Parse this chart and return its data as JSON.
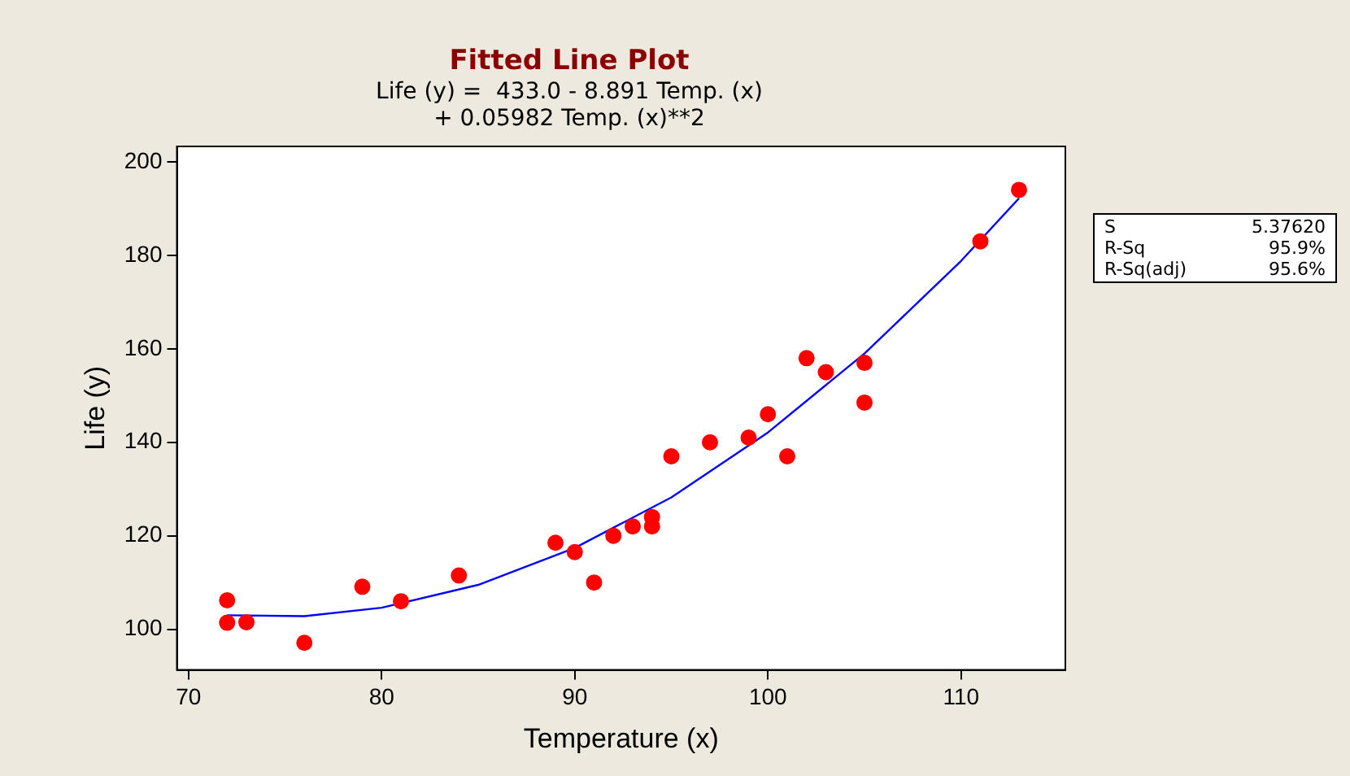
{
  "chart_data": {
    "type": "scatter",
    "title": "Fitted Line Plot",
    "subtitle": "Life (y) =  433.0 - 8.891 Temp. (x)\n+ 0.05982 Temp. (x)**2",
    "xlabel": "Temperature (x)",
    "ylabel": "Life (y)",
    "xlim": [
      69.4,
      115.4
    ],
    "ylim": [
      91.3,
      203.3
    ],
    "xticks": [
      70,
      80,
      90,
      100,
      110
    ],
    "yticks": [
      100,
      120,
      140,
      160,
      180,
      200
    ],
    "grid": false,
    "legend": false,
    "marker": "circle",
    "series": [
      {
        "color": "#ff0000",
        "x": [
          72,
          72,
          73,
          76,
          79,
          81,
          84,
          89,
          90,
          91,
          92,
          93,
          94,
          94,
          95,
          97,
          99,
          100,
          101,
          102,
          103,
          105,
          105,
          111,
          113
        ],
        "values": [
          106.2,
          101.4,
          101.5,
          97.1,
          109.1,
          106,
          111.5,
          118.5,
          116.5,
          110,
          120,
          122,
          124,
          122,
          137,
          140,
          141,
          146,
          137,
          158,
          155,
          157,
          148.5,
          183,
          194
        ]
      },
      {
        "type": "line",
        "color": "#0000ff",
        "marker": "none",
        "line_style": "solid",
        "x": [
          72,
          76,
          80,
          85,
          90,
          95,
          100,
          105,
          110,
          113
        ],
        "values": [
          103,
          102.8,
          104.6,
          109.5,
          117.4,
          128.2,
          142.1,
          159,
          178.8,
          192.2
        ]
      }
    ],
    "annotations": [
      "S",
      "5.37620",
      "R-Sq",
      "95.9%",
      "R-Sq(adj)",
      "95.6%"
    ]
  }
}
